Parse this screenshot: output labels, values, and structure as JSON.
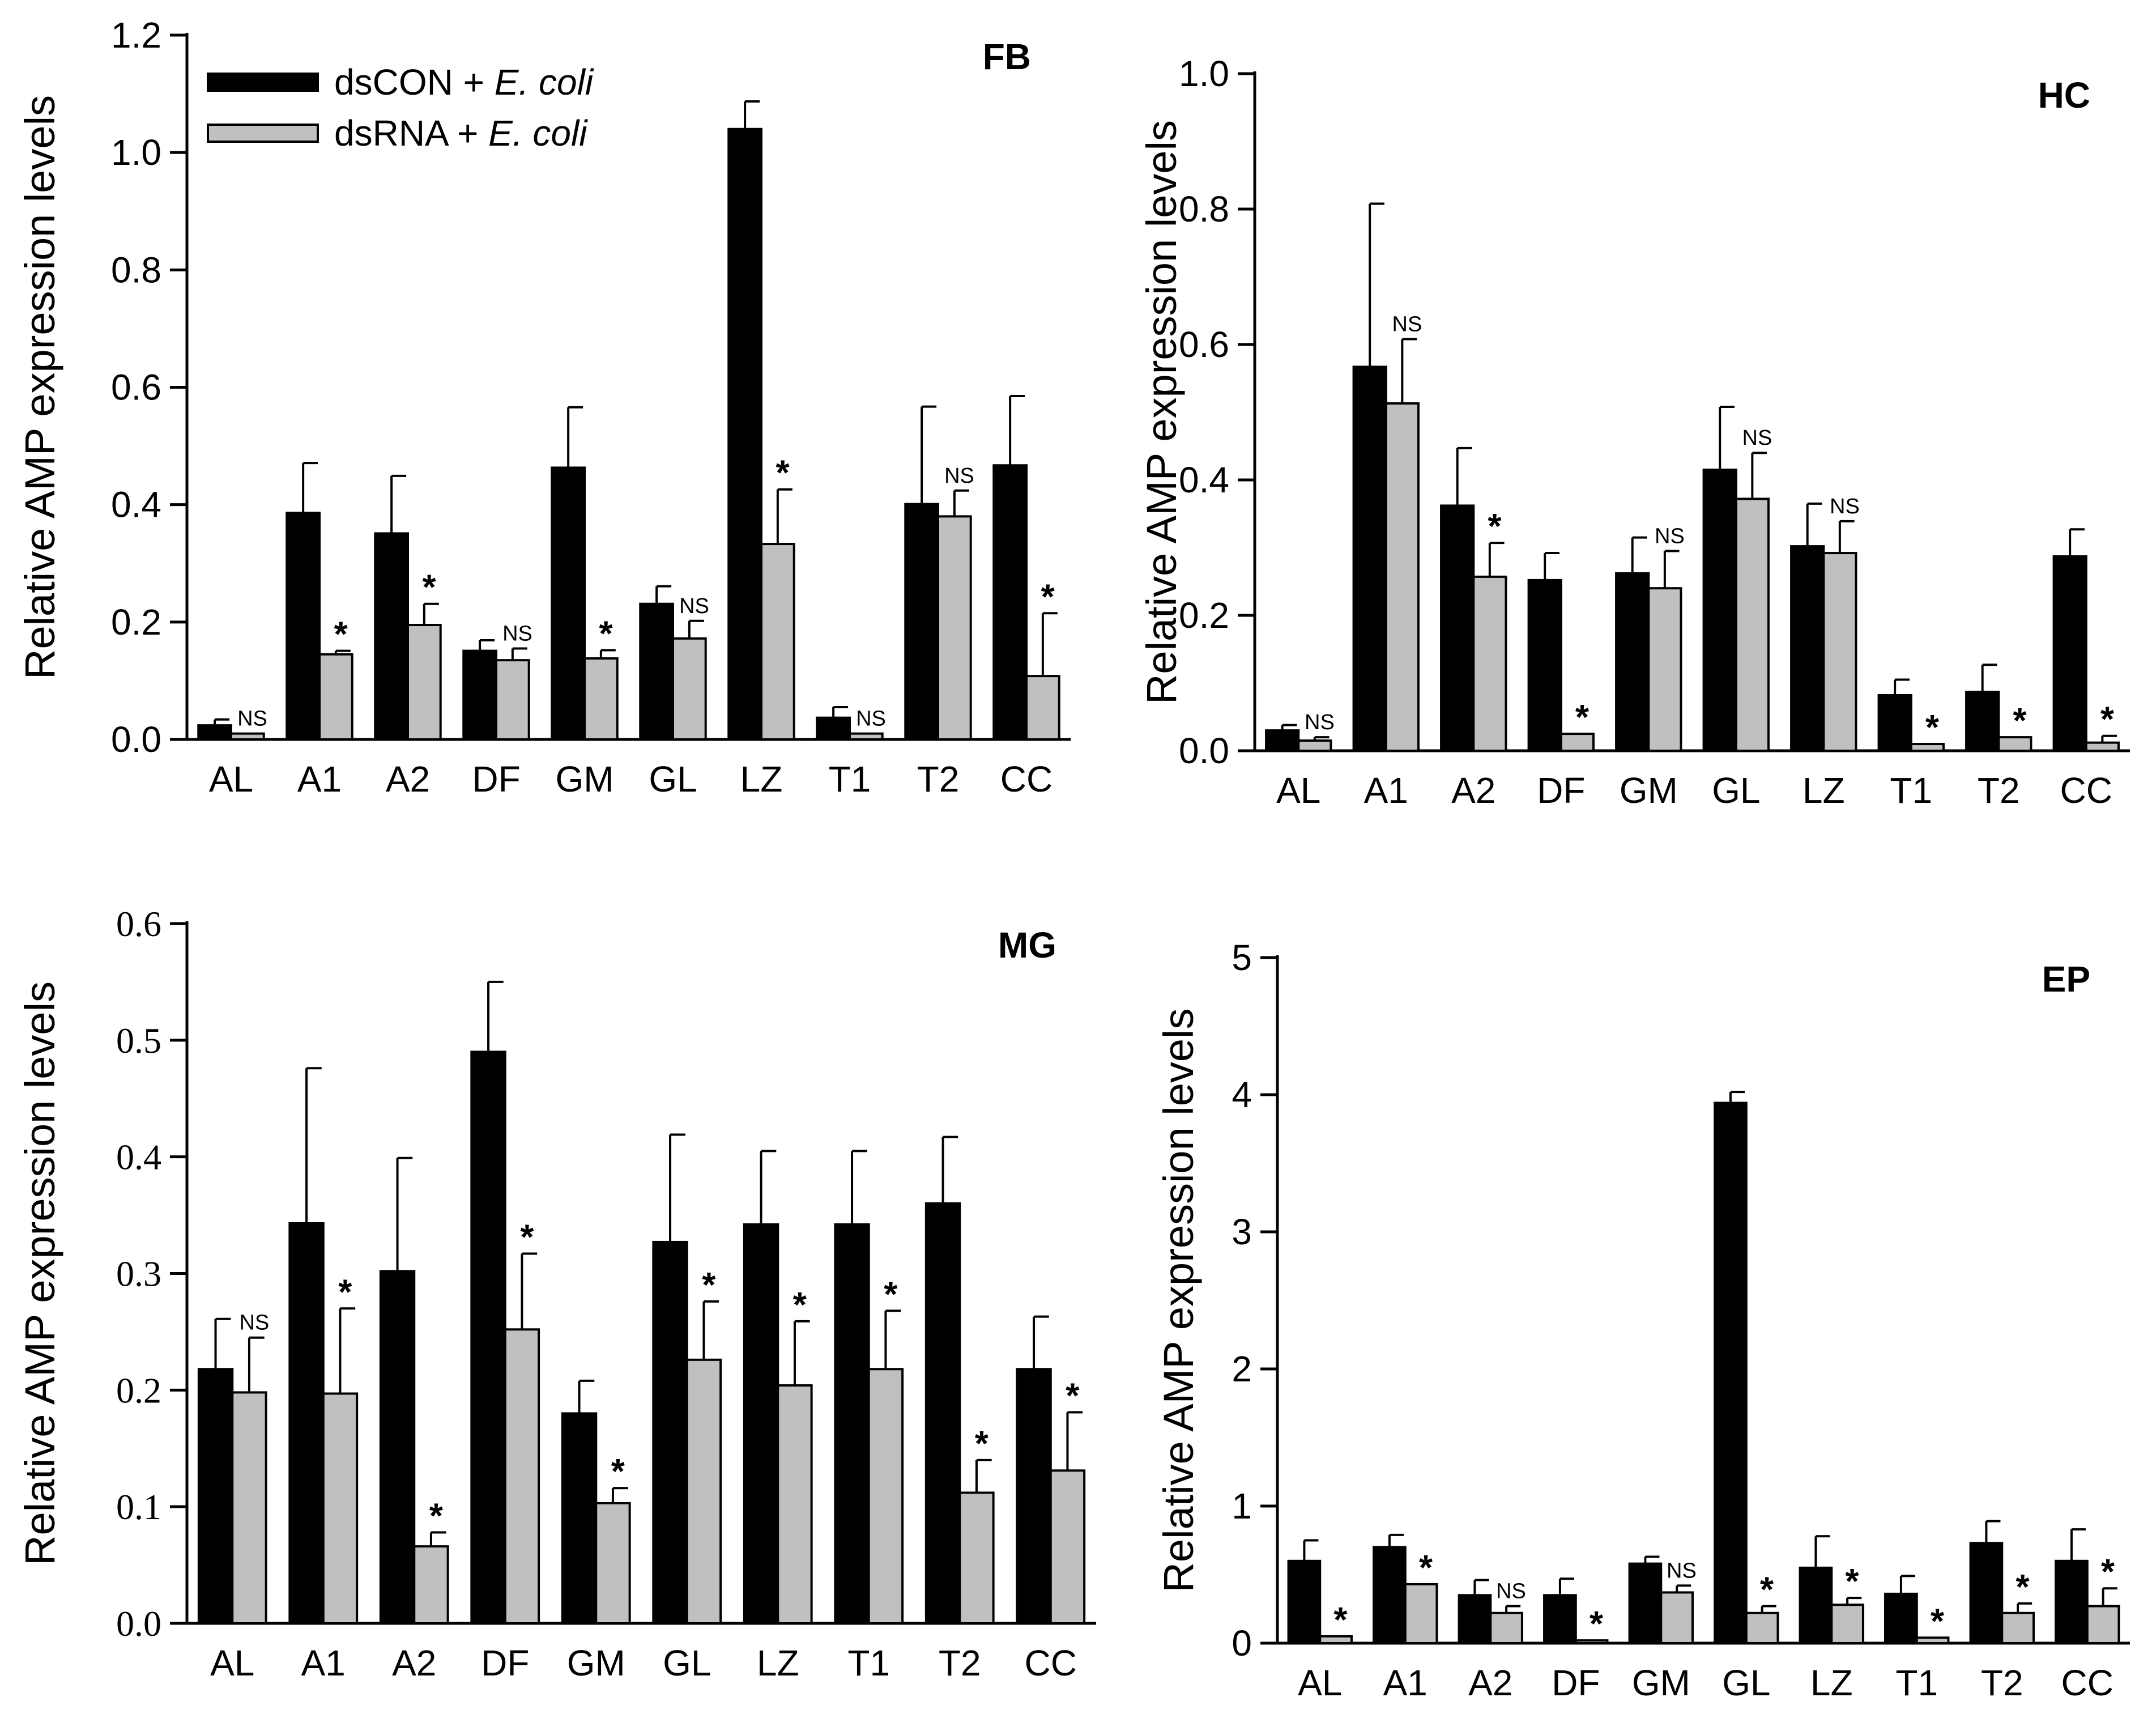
{
  "legend": {
    "series1_name": "dsCON + ",
    "series1_italic": "E. coli",
    "series2_name": "dsRNA + ",
    "series2_italic": "E. coli"
  },
  "colors": {
    "series1": "#000000",
    "series2": "#c0c0c0"
  },
  "chart_data": [
    {
      "type": "bar",
      "title": "FB",
      "ylabel": "Relative AMP expression levels",
      "xlabel": "",
      "ylim": [
        0,
        1.2
      ],
      "yticks": [
        "0.0",
        "0.2",
        "0.4",
        "0.6",
        "0.8",
        "1.0",
        "1.2"
      ],
      "categories": [
        "AL",
        "A1",
        "A2",
        "DF",
        "GM",
        "GL",
        "LZ",
        "T1",
        "T2",
        "CC"
      ],
      "series": [
        {
          "name": "dsCON + E. coli",
          "values": [
            0.024,
            0.386,
            0.351,
            0.151,
            0.463,
            0.231,
            1.04,
            0.037,
            0.401,
            0.467
          ],
          "errors": [
            0.01,
            0.085,
            0.098,
            0.018,
            0.103,
            0.03,
            0.047,
            0.018,
            0.166,
            0.118
          ]
        },
        {
          "name": "dsRNA + E. coli",
          "values": [
            0.01,
            0.145,
            0.195,
            0.135,
            0.138,
            0.172,
            0.333,
            0.01,
            0.38,
            0.108
          ],
          "errors": [
            0.0,
            0.006,
            0.036,
            0.02,
            0.014,
            0.03,
            0.093,
            0.0,
            0.044,
            0.107
          ]
        }
      ],
      "annotations": [
        "NS",
        "*",
        "*",
        "NS",
        "*",
        "NS",
        "*",
        "NS",
        "NS",
        "*"
      ]
    },
    {
      "type": "bar",
      "title": "HC",
      "ylabel": "Relative AMP expression levels",
      "xlabel": "",
      "ylim": [
        0,
        1.0
      ],
      "yticks": [
        "0.0",
        "0.2",
        "0.4",
        "0.6",
        "0.8",
        "1.0"
      ],
      "categories": [
        "AL",
        "A1",
        "A2",
        "DF",
        "GM",
        "GL",
        "LZ",
        "T1",
        "T2",
        "CC"
      ],
      "series": [
        {
          "name": "dsCON + E. coli",
          "values": [
            0.03,
            0.567,
            0.362,
            0.252,
            0.262,
            0.415,
            0.302,
            0.082,
            0.087,
            0.287
          ],
          "errors": [
            0.008,
            0.241,
            0.085,
            0.04,
            0.053,
            0.093,
            0.063,
            0.023,
            0.04,
            0.04
          ]
        },
        {
          "name": "dsRNA + E. coli",
          "values": [
            0.015,
            0.513,
            0.257,
            0.025,
            0.24,
            0.372,
            0.292,
            0.01,
            0.02,
            0.012
          ],
          "errors": [
            0.005,
            0.095,
            0.05,
            0.0,
            0.055,
            0.068,
            0.047,
            0.0,
            0.0,
            0.01
          ]
        }
      ],
      "annotations": [
        "NS",
        "NS",
        "*",
        "*",
        "NS",
        "NS",
        "NS",
        "*",
        "*",
        "*"
      ]
    },
    {
      "type": "bar",
      "title": "MG",
      "ylabel": "Relative AMP expression levels",
      "xlabel": "",
      "ylim": [
        0,
        0.6
      ],
      "yticks": [
        "0.0",
        "0.1",
        "0.2",
        "0.3",
        "0.4",
        "0.5",
        "0.6"
      ],
      "categories": [
        "AL",
        "A1",
        "A2",
        "DF",
        "GM",
        "GL",
        "LZ",
        "T1",
        "T2",
        "CC"
      ],
      "series": [
        {
          "name": "dsCON + E. coli",
          "values": [
            0.218,
            0.343,
            0.302,
            0.49,
            0.18,
            0.327,
            0.342,
            0.342,
            0.36,
            0.218
          ],
          "errors": [
            0.043,
            0.133,
            0.097,
            0.06,
            0.028,
            0.092,
            0.063,
            0.063,
            0.057,
            0.045
          ]
        },
        {
          "name": "dsRNA + E. coli",
          "values": [
            0.198,
            0.197,
            0.066,
            0.252,
            0.103,
            0.226,
            0.204,
            0.218,
            0.112,
            0.131
          ],
          "errors": [
            0.047,
            0.073,
            0.012,
            0.065,
            0.013,
            0.05,
            0.055,
            0.05,
            0.028,
            0.05
          ]
        }
      ],
      "annotations": [
        "NS",
        "*",
        "*",
        "*",
        "*",
        "*",
        "*",
        "*",
        "*",
        "*"
      ]
    },
    {
      "type": "bar",
      "title": "EP",
      "ylabel": "Relative AMP expression levels",
      "xlabel": "",
      "ylim": [
        0,
        5
      ],
      "yticks": [
        "0",
        "1",
        "2",
        "3",
        "4",
        "5"
      ],
      "categories": [
        "AL",
        "A1",
        "A2",
        "DF",
        "GM",
        "GL",
        "LZ",
        "T1",
        "T2",
        "CC"
      ],
      "series": [
        {
          "name": "dsCON + E. coli",
          "values": [
            0.6,
            0.7,
            0.35,
            0.35,
            0.58,
            3.94,
            0.55,
            0.36,
            0.73,
            0.6
          ],
          "errors": [
            0.15,
            0.09,
            0.11,
            0.12,
            0.05,
            0.08,
            0.23,
            0.13,
            0.16,
            0.23
          ]
        },
        {
          "name": "dsRNA + E. coli",
          "values": [
            0.05,
            0.43,
            0.22,
            0.02,
            0.37,
            0.22,
            0.28,
            0.04,
            0.22,
            0.27
          ],
          "errors": [
            0.0,
            0.0,
            0.05,
            0.0,
            0.05,
            0.05,
            0.05,
            0.0,
            0.07,
            0.13
          ]
        }
      ],
      "annotations": [
        "*",
        "*",
        "NS",
        "*",
        "NS",
        "*",
        "*",
        "*",
        "*",
        "*"
      ]
    }
  ]
}
